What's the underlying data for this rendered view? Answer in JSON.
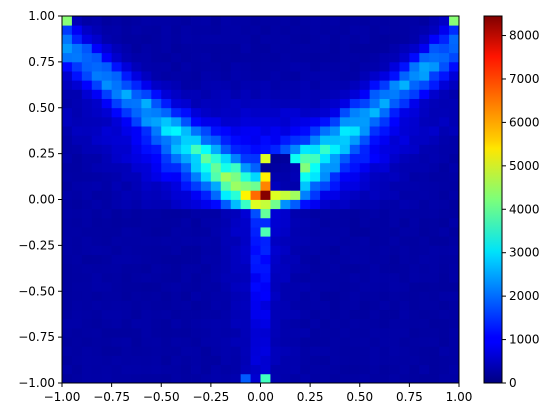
{
  "chart_data": {
    "type": "heatmap",
    "title": "",
    "xlabel": "",
    "ylabel": "",
    "xlim": [
      -1.0,
      1.0
    ],
    "ylim": [
      -1.0,
      1.0
    ],
    "bins": 40,
    "colormap": "jet",
    "grid": false,
    "x_ticks": [
      "−1.00",
      "−0.75",
      "−0.50",
      "−0.25",
      "0.00",
      "0.25",
      "0.50",
      "0.75",
      "1.00"
    ],
    "y_ticks": [
      "−1.00",
      "−0.75",
      "−0.50",
      "−0.25",
      "0.00",
      "0.25",
      "0.50",
      "0.75",
      "1.00"
    ],
    "colorbar": {
      "min": 0,
      "max": 8450,
      "ticks": [
        "0",
        "1000",
        "2000",
        "3000",
        "4000",
        "5000",
        "6000",
        "7000",
        "8000"
      ]
    },
    "density_model": {
      "description_of_visible_structure": [
        "two diagonal ridges from the origin toward the top-left and top-right corners",
        "vertical stem along x=0 extending downward",
        "peak near origin, dark hollow just up-right of origin"
      ],
      "hot_cells": [
        {
          "x": 0.0,
          "y": 0.0,
          "value": 8400
        },
        {
          "x": 0.0,
          "y": 0.05,
          "value": 6300
        },
        {
          "x": 0.0,
          "y": 0.1,
          "value": 5400
        },
        {
          "x": 0.0,
          "y": 0.2,
          "value": 5000
        },
        {
          "x": 0.05,
          "y": 0.0,
          "value": 5000
        },
        {
          "x": 0.1,
          "y": 0.0,
          "value": 4800
        },
        {
          "x": 0.15,
          "y": 0.0,
          "value": 4500
        },
        {
          "x": 0.0,
          "y": -0.05,
          "value": 4800
        },
        {
          "x": 0.0,
          "y": -0.1,
          "value": 4000
        },
        {
          "x": 0.0,
          "y": -0.2,
          "value": 3800
        },
        {
          "x": -0.975,
          "y": 0.975,
          "value": 4300
        },
        {
          "x": 0.975,
          "y": 0.975,
          "value": 4300
        },
        {
          "x": 0.0,
          "y": -0.975,
          "value": 3700
        },
        {
          "x": -0.075,
          "y": -0.975,
          "value": 1800
        }
      ]
    }
  }
}
